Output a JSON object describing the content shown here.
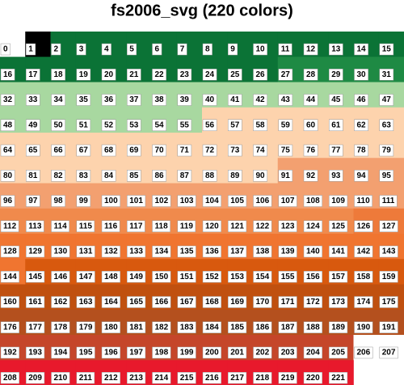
{
  "title": "fs2006_svg (220 colors)",
  "labels": [
    0,
    1,
    2,
    3,
    4,
    5,
    6,
    7,
    8,
    9,
    10,
    11,
    12,
    13,
    14,
    15,
    16,
    17,
    18,
    19,
    20,
    21,
    22,
    23,
    24,
    25,
    26,
    27,
    28,
    29,
    30,
    31,
    32,
    33,
    34,
    35,
    36,
    37,
    38,
    39,
    40,
    41,
    42,
    43,
    44,
    45,
    46,
    47,
    48,
    49,
    50,
    51,
    52,
    53,
    54,
    55,
    56,
    57,
    58,
    59,
    60,
    61,
    62,
    63,
    64,
    65,
    66,
    67,
    68,
    69,
    70,
    71,
    72,
    73,
    74,
    75,
    76,
    77,
    78,
    79,
    80,
    81,
    82,
    83,
    84,
    85,
    86,
    87,
    88,
    89,
    90,
    91,
    92,
    93,
    94,
    95,
    96,
    97,
    98,
    99,
    100,
    101,
    102,
    103,
    104,
    105,
    106,
    107,
    108,
    109,
    110,
    111,
    112,
    113,
    114,
    115,
    116,
    117,
    118,
    119,
    120,
    121,
    122,
    123,
    124,
    125,
    126,
    127,
    128,
    129,
    130,
    131,
    132,
    133,
    134,
    135,
    136,
    137,
    138,
    139,
    140,
    141,
    142,
    143,
    144,
    145,
    146,
    147,
    148,
    149,
    150,
    151,
    152,
    153,
    154,
    155,
    156,
    157,
    158,
    159,
    160,
    161,
    162,
    163,
    164,
    165,
    166,
    167,
    168,
    169,
    170,
    171,
    172,
    173,
    174,
    175,
    176,
    177,
    178,
    179,
    180,
    181,
    182,
    183,
    184,
    185,
    186,
    187,
    188,
    189,
    190,
    191,
    192,
    193,
    194,
    195,
    196,
    197,
    198,
    199,
    200,
    201,
    202,
    203,
    204,
    205,
    206,
    207,
    208,
    209,
    210,
    211,
    212,
    213,
    214,
    215,
    216,
    217,
    218,
    219,
    220,
    221
  ],
  "colors": [
    "#ffffff",
    "#000000",
    "#0b7336",
    "#0b7336",
    "#0b7336",
    "#0b7336",
    "#0b7336",
    "#0b7336",
    "#0b7336",
    "#0b7336",
    "#0b7336",
    "#0b7336",
    "#0b7336",
    "#0b7336",
    "#0b7336",
    "#0b7336",
    "#0b7336",
    "#0b7336",
    "#0b7336",
    "#0b7336",
    "#0b7336",
    "#0b7336",
    "#0b7336",
    "#0b7336",
    "#0b7336",
    "#0b7336",
    "#0b7336",
    "#1e8a44",
    "#1e8a44",
    "#1e8a44",
    "#1e8a44",
    "#1e8a44",
    "#a8d8a0",
    "#a8d8a0",
    "#a8d8a0",
    "#a8d8a0",
    "#a8d8a0",
    "#a8d8a0",
    "#a8d8a0",
    "#a8d8a0",
    "#a8d8a0",
    "#a8d8a0",
    "#a8d8a0",
    "#a8d8a0",
    "#a8d8a0",
    "#a8d8a0",
    "#a8d8a0",
    "#a8d8a0",
    "#a8d8a0",
    "#a8d8a0",
    "#a8d8a0",
    "#a8d8a0",
    "#a8d8a0",
    "#a8d8a0",
    "#a8d8a0",
    "#a8d8a0",
    "#fdd3ad",
    "#fdd3ad",
    "#fdd3ad",
    "#fdd3ad",
    "#fdd3ad",
    "#fdd3ad",
    "#fdd3ad",
    "#fdd3ad",
    "#fdd3ad",
    "#fdd3ad",
    "#fdd3ad",
    "#fdd3ad",
    "#fdd3ad",
    "#fdd3ad",
    "#fdd3ad",
    "#fdd3ad",
    "#fdd3ad",
    "#fdd3ad",
    "#fdd3ad",
    "#fdd3ad",
    "#fdd3ad",
    "#fdd3ad",
    "#fdd3ad",
    "#fdd3ad",
    "#fdd3ad",
    "#fdd3ad",
    "#fdd3ad",
    "#fdd3ad",
    "#fdd3ad",
    "#fdd3ad",
    "#fdd3ad",
    "#fdd3ad",
    "#fdd3ad",
    "#fdd3ad",
    "#fdd3ad",
    "#f3a070",
    "#f3a070",
    "#f3a070",
    "#f3a070",
    "#f3a070",
    "#f3a070",
    "#f3a070",
    "#f3a070",
    "#f3a070",
    "#f3a070",
    "#f3a070",
    "#f3a070",
    "#f3a070",
    "#f3a070",
    "#f3a070",
    "#f3a070",
    "#f3a070",
    "#f3a070",
    "#f3a070",
    "#f3a070",
    "#f3a070",
    "#f08a4c",
    "#f08a4c",
    "#f08a4c",
    "#f08a4c",
    "#f08a4c",
    "#f08a4c",
    "#f08a4c",
    "#f08a4c",
    "#f08a4c",
    "#f08a4c",
    "#f08a4c",
    "#f08a4c",
    "#f08a4c",
    "#f08a4c",
    "#ee7a3a",
    "#ee7a3a",
    "#f07530",
    "#f07530",
    "#f07530",
    "#f07530",
    "#f07530",
    "#f07530",
    "#f07530",
    "#f07530",
    "#f07530",
    "#f07530",
    "#f07530",
    "#f07530",
    "#f07530",
    "#f07530",
    "#f07530",
    "#f07530",
    "#f07530",
    "#d8590e",
    "#d8590e",
    "#d8590e",
    "#d8590e",
    "#d8590e",
    "#d8590e",
    "#d8590e",
    "#d8590e",
    "#d8590e",
    "#d8590e",
    "#d8590e",
    "#d8590e",
    "#d8590e",
    "#d8590e",
    "#d8590e",
    "#c0500f",
    "#c0500f",
    "#c0500f",
    "#c0500f",
    "#c0500f",
    "#c0500f",
    "#c0500f",
    "#c0500f",
    "#c0500f",
    "#c0500f",
    "#c0500f",
    "#c0500f",
    "#c0500f",
    "#c0500f",
    "#c0500f",
    "#c0500f",
    "#b4501e",
    "#b4501e",
    "#b4501e",
    "#b4501e",
    "#b4501e",
    "#b4501e",
    "#b4501e",
    "#b4501e",
    "#b4501e",
    "#b4501e",
    "#b4501e",
    "#b4501e",
    "#b4501e",
    "#b4501e",
    "#b4501e",
    "#b4501e",
    "#c5462a",
    "#c5462a",
    "#c5462a",
    "#c5462a",
    "#c5462a",
    "#c5462a",
    "#c5462a",
    "#c5462a",
    "#c5462a",
    "#c5462a",
    "#c5462a",
    "#c5462a",
    "#c5462a",
    "#c5462a",
    "#ffffff",
    "#ffffff",
    "#e8192c",
    "#e8192c",
    "#e8192c",
    "#e8192c",
    "#e8192c",
    "#e8192c",
    "#e8192c",
    "#e8192c",
    "#e8192c",
    "#e8192c",
    "#e8192c",
    "#e8192c",
    "#e8192c",
    "#e8192c"
  ]
}
